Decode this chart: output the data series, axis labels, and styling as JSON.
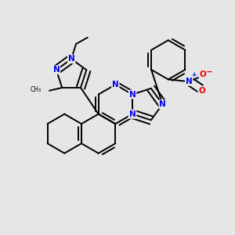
{
  "bg_color": "#e6e6e6",
  "bond_color": "#000000",
  "n_color": "#0000ee",
  "o_color": "#ee0000",
  "lw": 1.4,
  "dbo": 0.018,
  "fs": 7.5,
  "xlim": [
    0.0,
    1.0
  ],
  "ylim": [
    0.05,
    0.95
  ]
}
